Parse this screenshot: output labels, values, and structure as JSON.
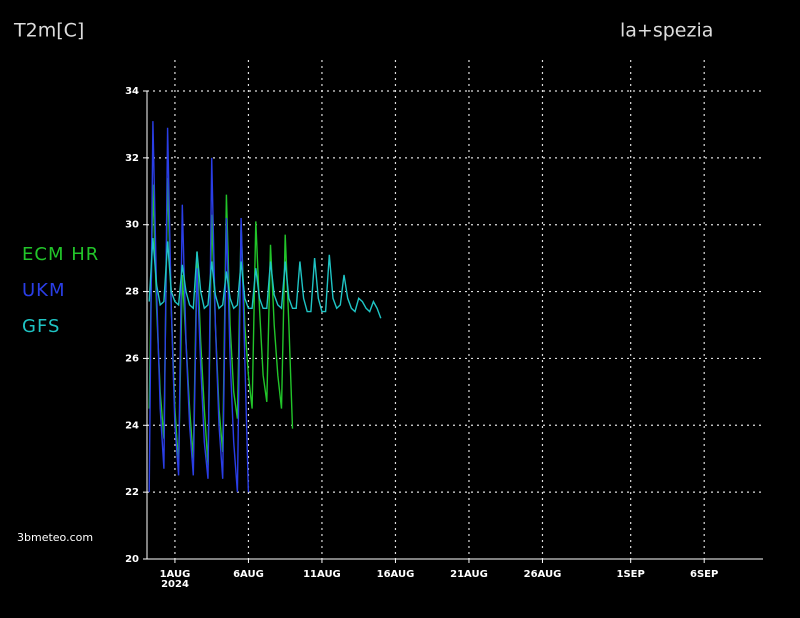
{
  "chart_data": {
    "type": "line",
    "title": "T2m[C]",
    "subtitle": "la+spezia",
    "source": "3bmeteo.com",
    "year_label": "2024",
    "xlim": [
      -1.9,
      40
    ],
    "ylim": [
      20,
      34
    ],
    "yticks": [
      20,
      22,
      24,
      26,
      28,
      30,
      32,
      34
    ],
    "xticks": [
      {
        "value": 0,
        "label": "1AUG"
      },
      {
        "value": 5,
        "label": "6AUG"
      },
      {
        "value": 10,
        "label": "11AUG"
      },
      {
        "value": 15,
        "label": "16AUG"
      },
      {
        "value": 20,
        "label": "21AUG"
      },
      {
        "value": 25,
        "label": "26AUG"
      },
      {
        "value": 31,
        "label": "1SEP"
      },
      {
        "value": 36,
        "label": "6SEP"
      }
    ],
    "grid": true,
    "legend": "left",
    "series": [
      {
        "name": "ECM HR",
        "color": "#22c52a",
        "x": [
          -1.75,
          -1.5,
          -1.25,
          -1,
          -0.75,
          -0.5,
          -0.25,
          0,
          0.25,
          0.5,
          0.75,
          1,
          1.25,
          1.5,
          1.75,
          2,
          2.25,
          2.5,
          2.75,
          3,
          3.25,
          3.5,
          3.75,
          4,
          4.25,
          4.5,
          4.75,
          5,
          5.25,
          5.5,
          5.75,
          6,
          6.25,
          6.5,
          6.75,
          7,
          7.25,
          7.5,
          7.75,
          8
        ],
        "values": [
          24.5,
          31.2,
          27.5,
          25.0,
          23.6,
          31.4,
          27.5,
          24.5,
          22.8,
          28.5,
          26.5,
          24.5,
          23.0,
          29.2,
          26.5,
          24.5,
          22.8,
          30.3,
          27.0,
          24.5,
          23.2,
          30.9,
          27.0,
          25.0,
          24.2,
          30.0,
          27.0,
          25.5,
          24.5,
          30.1,
          27.5,
          25.5,
          24.7,
          29.4,
          27.0,
          25.5,
          24.5,
          29.7,
          27.0,
          23.9
        ]
      },
      {
        "name": "UKM",
        "color": "#2a3ee6",
        "x": [
          -1.75,
          -1.5,
          -1.25,
          -1,
          -0.75,
          -0.5,
          -0.25,
          0,
          0.25,
          0.5,
          0.75,
          1,
          1.25,
          1.5,
          1.75,
          2,
          2.25,
          2.5,
          2.75,
          3,
          3.25,
          3.5,
          3.75,
          4,
          4.25,
          4.5,
          4.75,
          5
        ],
        "values": [
          22.0,
          33.1,
          28.0,
          24.5,
          22.7,
          32.9,
          27.5,
          24.0,
          22.5,
          30.6,
          26.5,
          24.0,
          22.5,
          28.7,
          25.8,
          23.5,
          22.4,
          32.0,
          27.0,
          24.0,
          22.4,
          30.2,
          26.0,
          23.5,
          22.0,
          30.2,
          26.0,
          22.0
        ]
      },
      {
        "name": "GFS",
        "color": "#1fc4c4",
        "x": [
          -1.75,
          -1.5,
          -1.25,
          -1,
          -0.75,
          -0.5,
          -0.25,
          0,
          0.25,
          0.5,
          0.75,
          1,
          1.25,
          1.5,
          1.75,
          2,
          2.25,
          2.5,
          2.75,
          3,
          3.25,
          3.5,
          3.75,
          4,
          4.25,
          4.5,
          4.75,
          5,
          5.25,
          5.5,
          5.75,
          6,
          6.25,
          6.5,
          6.75,
          7,
          7.25,
          7.5,
          7.75,
          8,
          8.25,
          8.5,
          8.75,
          9,
          9.25,
          9.5,
          9.75,
          10,
          10.25,
          10.5,
          10.75,
          11,
          11.25,
          11.5,
          11.75,
          12,
          12.25,
          12.5,
          12.75,
          13,
          13.25,
          13.5,
          13.75,
          14
        ],
        "values": [
          27.7,
          29.6,
          28.2,
          27.6,
          27.7,
          29.5,
          28.0,
          27.7,
          27.6,
          28.8,
          28.0,
          27.6,
          27.5,
          29.2,
          28.0,
          27.5,
          27.6,
          28.9,
          27.9,
          27.5,
          27.6,
          28.6,
          27.8,
          27.5,
          27.6,
          28.9,
          27.8,
          27.5,
          27.5,
          28.7,
          27.8,
          27.5,
          27.5,
          28.9,
          27.9,
          27.6,
          27.5,
          28.9,
          27.8,
          27.5,
          27.5,
          28.9,
          27.8,
          27.4,
          27.4,
          29.0,
          27.8,
          27.4,
          27.4,
          29.1,
          27.8,
          27.5,
          27.6,
          28.5,
          27.8,
          27.5,
          27.4,
          27.8,
          27.7,
          27.5,
          27.4,
          27.7,
          27.5,
          27.2
        ]
      }
    ]
  }
}
